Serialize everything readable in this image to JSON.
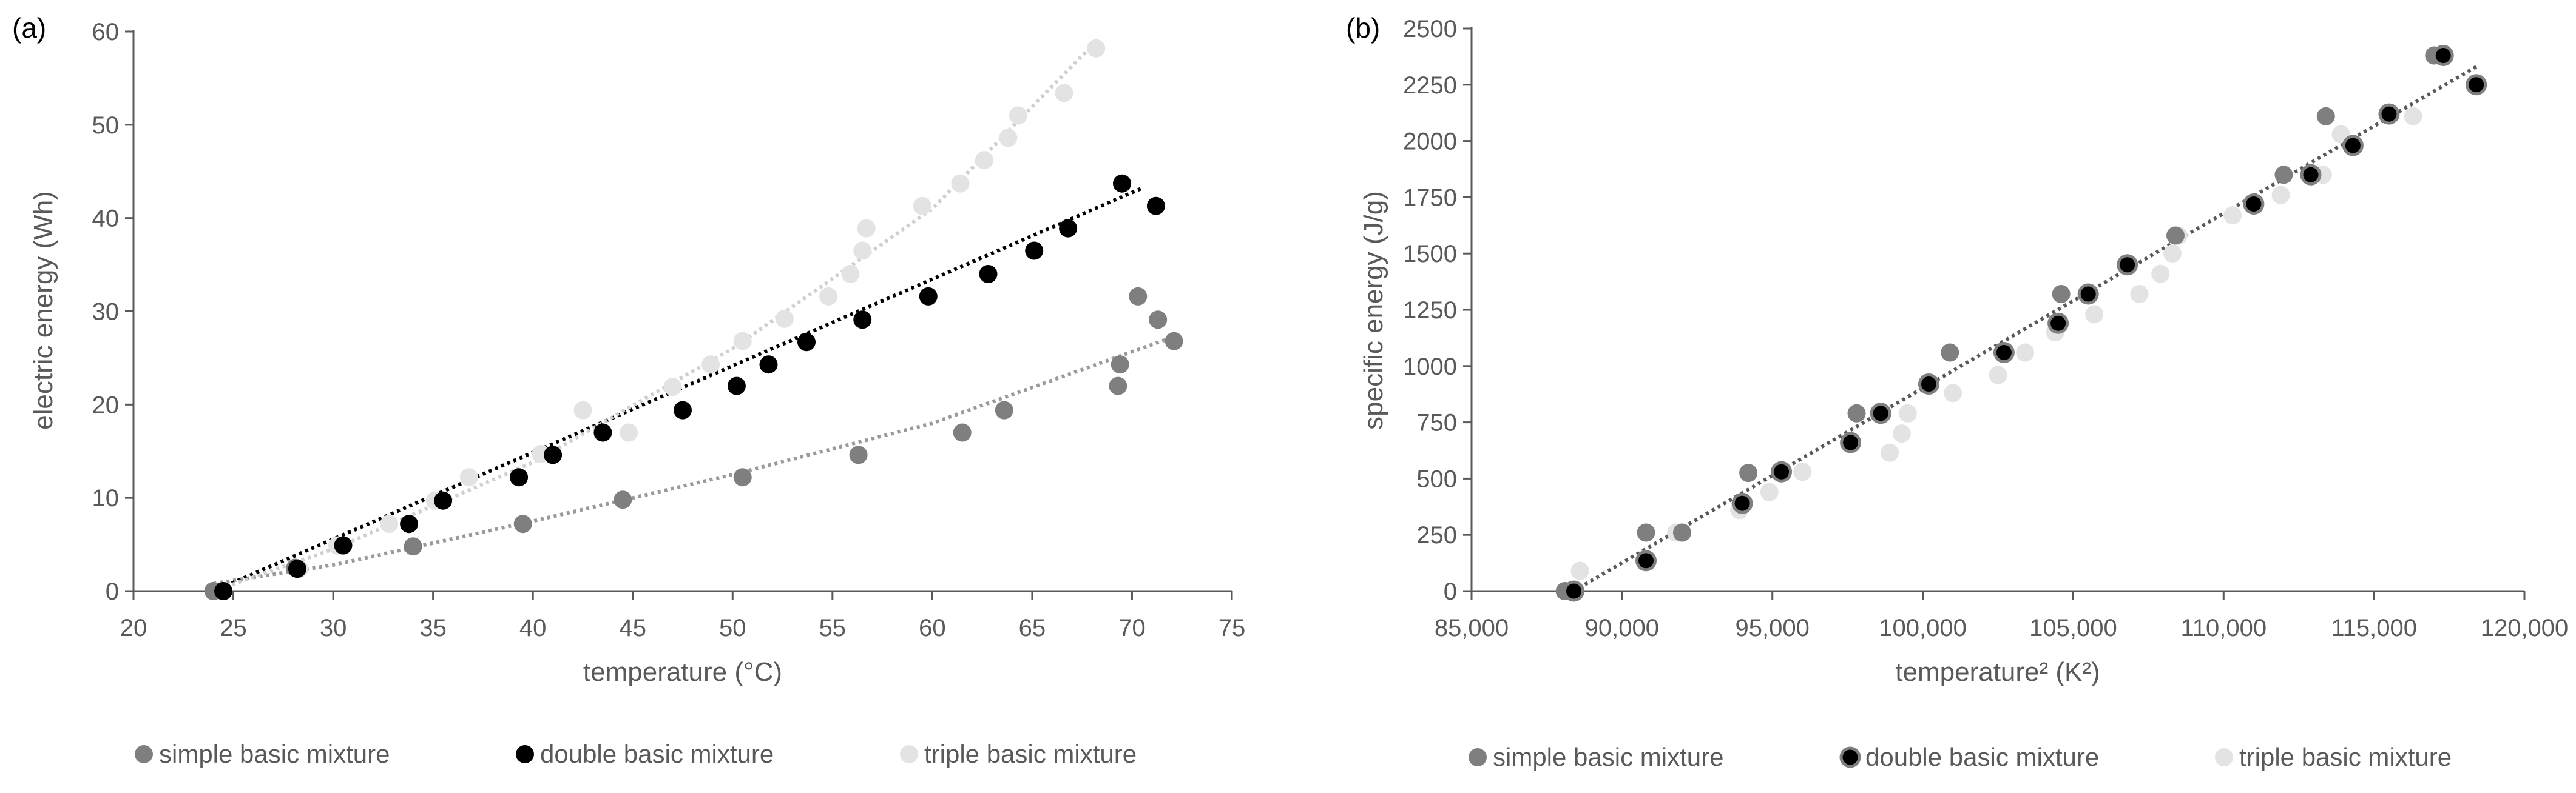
{
  "colors": {
    "simple": "#7f7f7f",
    "double": "#000000",
    "triple": "#e3e3e3",
    "axis": "#595959"
  },
  "chart_data": [
    {
      "panel": "(a)",
      "type": "scatter",
      "xlabel": "temperature (°C)",
      "ylabel": "electric energy (Wh)",
      "xlim": [
        20,
        75
      ],
      "ylim": [
        0,
        60
      ],
      "xticks": [
        20,
        25,
        30,
        35,
        40,
        45,
        50,
        55,
        60,
        65,
        70,
        75
      ],
      "yticks": [
        0,
        10,
        20,
        30,
        40,
        50,
        60
      ],
      "grid": false,
      "legend_position": "bottom",
      "trendlines": "dotted",
      "series": [
        {
          "name": "simple basic mixture",
          "color": "#7f7f7f",
          "x": [
            24.0,
            28.1,
            34.0,
            39.5,
            44.5,
            50.5,
            56.3,
            61.5,
            63.6,
            69.3,
            69.4,
            70.3,
            71.3,
            72.1
          ],
          "y": [
            0,
            2.5,
            4.8,
            7.2,
            9.8,
            12.2,
            14.6,
            17.0,
            19.4,
            22.0,
            24.3,
            31.6,
            29.1,
            26.8
          ],
          "trend": [
            [
              24,
              0.8
            ],
            [
              30,
              2.8
            ],
            [
              40,
              7.5
            ],
            [
              50,
              12.5
            ],
            [
              60,
              18.0
            ],
            [
              72,
              27.2
            ]
          ]
        },
        {
          "name": "double basic mixture",
          "color": "#000000",
          "x": [
            24.5,
            28.2,
            30.5,
            33.8,
            35.5,
            39.3,
            41.0,
            43.5,
            47.5,
            50.2,
            51.8,
            53.7,
            56.5,
            59.8,
            62.8,
            65.1,
            66.8,
            69.5,
            71.2
          ],
          "y": [
            0,
            2.4,
            4.9,
            7.2,
            9.7,
            12.2,
            14.6,
            17.0,
            19.4,
            22.0,
            24.3,
            26.7,
            29.1,
            31.6,
            34.0,
            36.5,
            38.9,
            43.7,
            41.3
          ],
          "trend": [
            [
              24,
              0
            ],
            [
              70.5,
              43.2
            ]
          ]
        },
        {
          "name": "triple basic mixture",
          "color": "#e3e3e3",
          "x": [
            24.2,
            28.3,
            30.2,
            32.8,
            35.1,
            36.8,
            40.4,
            42.5,
            44.8,
            47.0,
            48.9,
            50.5,
            52.6,
            54.8,
            55.9,
            56.5,
            56.7,
            59.5,
            61.4,
            62.6,
            63.8,
            64.3,
            66.6,
            68.2
          ],
          "y": [
            0,
            2.4,
            4.9,
            7.2,
            9.7,
            12.2,
            14.7,
            19.4,
            17.0,
            21.9,
            24.3,
            26.8,
            29.2,
            31.6,
            34.0,
            36.5,
            38.9,
            41.3,
            43.7,
            46.2,
            48.6,
            51.0,
            53.4,
            58.2
          ],
          "trend": [
            [
              24,
              0
            ],
            [
              30,
              4.5
            ],
            [
              40,
              13.8
            ],
            [
              50,
              26.0
            ],
            [
              60,
              41.0
            ],
            [
              68,
              58.5
            ]
          ]
        }
      ]
    },
    {
      "panel": "(b)",
      "type": "scatter",
      "xlabel": "temperature² (K²)",
      "ylabel": "specific energy (J/g)",
      "xlim": [
        85000,
        120000
      ],
      "ylim": [
        0,
        2500
      ],
      "xticks": [
        85000,
        90000,
        95000,
        100000,
        105000,
        110000,
        115000,
        120000
      ],
      "xtick_labels": [
        "85,000",
        "90,000",
        "95,000",
        "100,000",
        "105,000",
        "110,000",
        "115,000",
        "120,000"
      ],
      "yticks": [
        0,
        250,
        500,
        750,
        1000,
        1250,
        1500,
        1750,
        2000,
        2250,
        2500
      ],
      "grid": false,
      "legend_position": "bottom",
      "trendlines": "dotted",
      "series": [
        {
          "name": "simple basic mixture",
          "color": "#7f7f7f",
          "x": [
            88100,
            90800,
            92000,
            94200,
            97800,
            100900,
            104600,
            108400,
            112000,
            113400,
            117000
          ],
          "y": [
            0,
            260,
            260,
            525,
            790,
            1060,
            1320,
            1580,
            1850,
            2110,
            2380
          ]
        },
        {
          "name": "double basic mixture",
          "color": "#000000",
          "x": [
            88400,
            90800,
            94000,
            95300,
            97600,
            98600,
            100200,
            102700,
            104500,
            105500,
            106800,
            111000,
            112900,
            114300,
            115500,
            117300,
            118400
          ],
          "y": [
            0,
            135,
            390,
            530,
            660,
            790,
            920,
            1060,
            1190,
            1320,
            1450,
            1720,
            1850,
            1980,
            2120,
            2380,
            2250
          ]
        },
        {
          "name": "triple basic mixture",
          "color": "#e3e3e3",
          "x": [
            88600,
            91800,
            93900,
            94900,
            96000,
            98900,
            99300,
            99500,
            101000,
            102500,
            103400,
            104400,
            105700,
            107200,
            107900,
            108300,
            108500,
            110300,
            111900,
            113300,
            113900,
            116300
          ],
          "y": [
            90,
            260,
            360,
            440,
            530,
            615,
            700,
            790,
            880,
            960,
            1060,
            1150,
            1230,
            1320,
            1410,
            1500,
            1580,
            1670,
            1760,
            1850,
            2030,
            2110
          ]
        }
      ],
      "trend": [
        [
          88000,
          -30
        ],
        [
          118400,
          2330
        ]
      ]
    }
  ]
}
